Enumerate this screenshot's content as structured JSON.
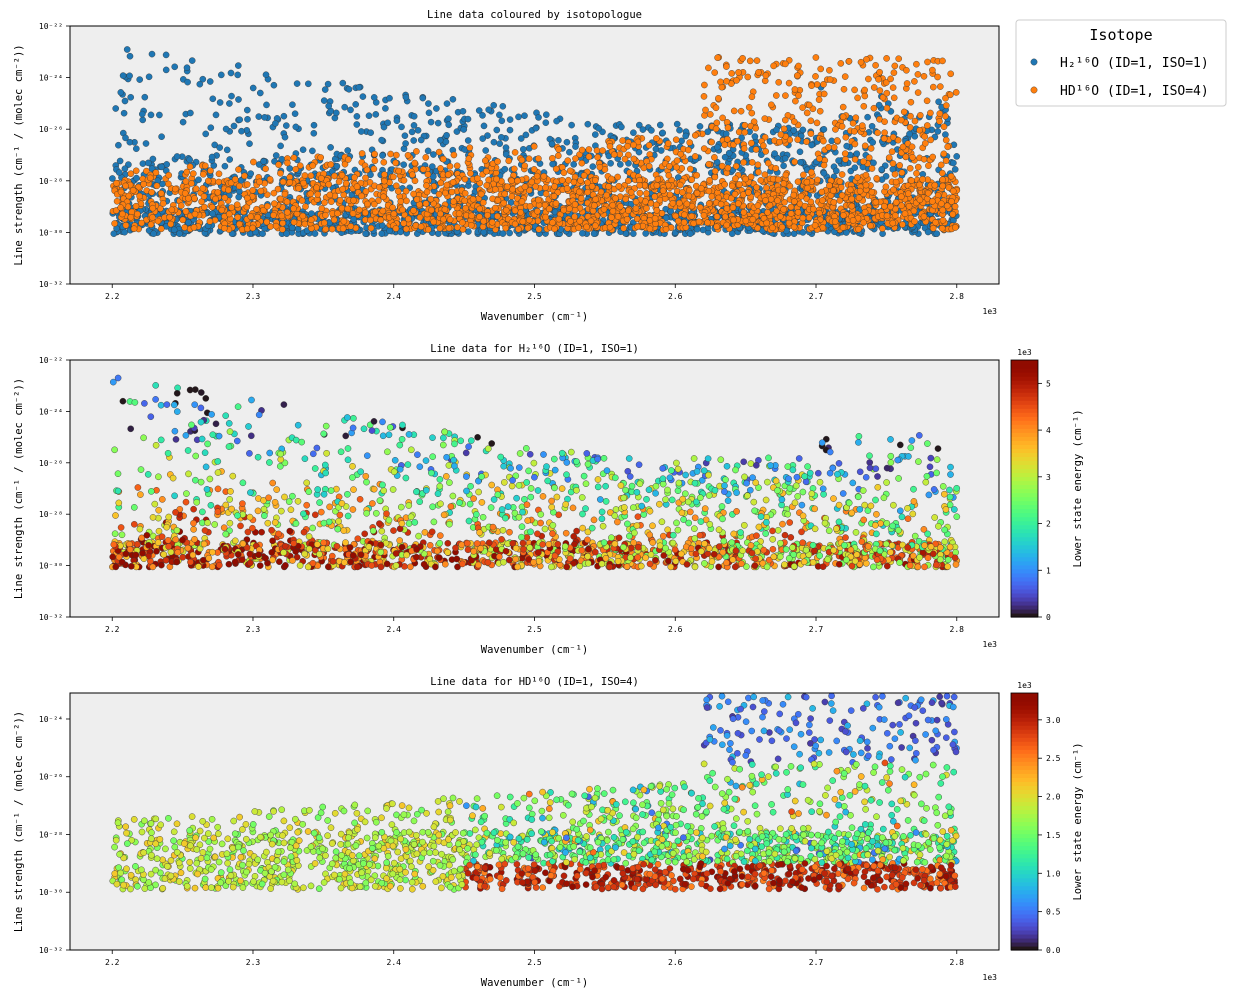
{
  "chart_data": [
    {
      "type": "scatter",
      "title": "Line data coloured by isotopologue",
      "xlabel": "Wavenumber (cm⁻¹)",
      "ylabel": "Line strength (cm⁻¹ / (molec cm⁻²))",
      "x_offset_label": "1e3",
      "xlim": [
        2.17,
        2.83
      ],
      "ylim_log10": [
        -32,
        -22
      ],
      "x_ticks": [
        "2.2",
        "2.3",
        "2.4",
        "2.5",
        "2.6",
        "2.7",
        "2.8"
      ],
      "y_ticks": [
        "10⁻²²",
        "10⁻²⁴",
        "10⁻²⁶",
        "10⁻²⁸",
        "10⁻³⁰",
        "10⁻³²"
      ],
      "y_scale": "log",
      "grid": false,
      "background": "#eeeeee",
      "legend": {
        "title": "Isotope",
        "placement": "outside-top-right",
        "entries": [
          {
            "label": "H₂¹⁶O (ID=1, ISO=1)",
            "color": "#1f77b4"
          },
          {
            "label": "HD¹⁶O (ID=1, ISO=4)",
            "color": "#ff7f0e"
          }
        ]
      },
      "series": [
        {
          "name": "H₂¹⁶O (ID=1, ISO=1)",
          "color": "#1f77b4",
          "x_range": [
            2.2,
            2.8
          ],
          "log10_y_range": [
            -30.1,
            -22.3
          ],
          "approx_points": 2500
        },
        {
          "name": "HD¹⁶O (ID=1, ISO=4)",
          "color": "#ff7f0e",
          "x_range": [
            2.2,
            2.8
          ],
          "log10_y_range": [
            -30.0,
            -23.0
          ],
          "approx_points": 2500
        }
      ]
    },
    {
      "type": "scatter",
      "title": "Line data for H₂¹⁶O (ID=1, ISO=1)",
      "xlabel": "Wavenumber (cm⁻¹)",
      "ylabel": "Line strength (cm⁻¹ / (molec cm⁻²))",
      "x_offset_label": "1e3",
      "xlim": [
        2.17,
        2.83
      ],
      "ylim_log10": [
        -32,
        -22
      ],
      "x_ticks": [
        "2.2",
        "2.3",
        "2.4",
        "2.5",
        "2.6",
        "2.7",
        "2.8"
      ],
      "y_ticks": [
        "10⁻²²",
        "10⁻²⁴",
        "10⁻²⁶",
        "10⁻²⁸",
        "10⁻³⁰",
        "10⁻³²"
      ],
      "y_scale": "log",
      "background": "#eeeeee",
      "colorbar": {
        "label": "Lower state energy (cm⁻¹)",
        "offset_label": "1e3",
        "colormap": "turbo",
        "range": [
          0,
          5.5
        ],
        "ticks": [
          "0",
          "1",
          "2",
          "3",
          "4",
          "5"
        ]
      },
      "series": [
        {
          "name": "H₂¹⁶O (ID=1, ISO=1)",
          "x_range": [
            2.2,
            2.8
          ],
          "log10_y_range": [
            -30.1,
            -22.3
          ],
          "color_value_range": [
            0,
            5.5
          ],
          "approx_points": 2500
        }
      ]
    },
    {
      "type": "scatter",
      "title": "Line data for HD¹⁶O (ID=1, ISO=4)",
      "xlabel": "Wavenumber (cm⁻¹)",
      "ylabel": "Line strength (cm⁻¹ / (molec cm⁻²))",
      "x_offset_label": "1e3",
      "xlim": [
        2.17,
        2.83
      ],
      "ylim_log10": [
        -32,
        -23.1
      ],
      "x_ticks": [
        "2.2",
        "2.3",
        "2.4",
        "2.5",
        "2.6",
        "2.7",
        "2.8"
      ],
      "y_ticks": [
        "10⁻²⁴",
        "10⁻²⁶",
        "10⁻²⁸",
        "10⁻³⁰",
        "10⁻³²"
      ],
      "y_scale": "log",
      "background": "#eeeeee",
      "colorbar": {
        "label": "Lower state energy (cm⁻¹)",
        "offset_label": "1e3",
        "colormap": "turbo",
        "range": [
          0,
          3.35
        ],
        "ticks": [
          "0.0",
          "0.5",
          "1.0",
          "1.5",
          "2.0",
          "2.5",
          "3.0"
        ]
      },
      "series": [
        {
          "name": "HD¹⁶O (ID=1, ISO=4)",
          "x_range": [
            2.2,
            2.8
          ],
          "log10_y_range": [
            -30.0,
            -23.1
          ],
          "color_value_range": [
            0,
            3.35
          ],
          "approx_points": 2500
        }
      ]
    }
  ]
}
